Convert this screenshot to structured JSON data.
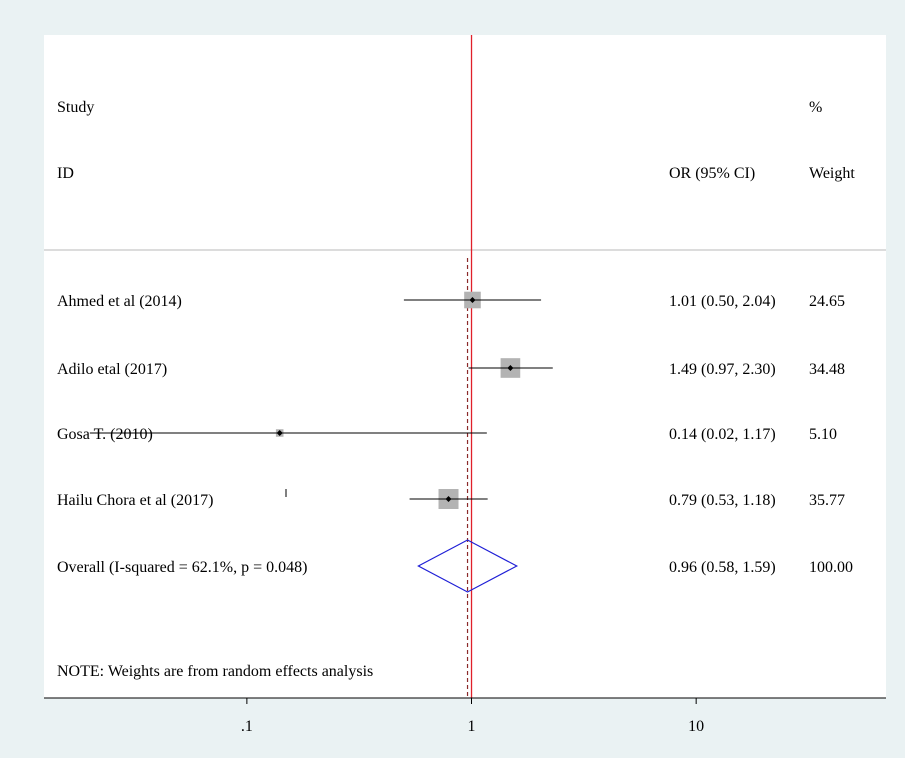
{
  "chart_data": {
    "type": "forest",
    "x_scale": "log",
    "xlim": [
      0.0125,
      70
    ],
    "x_ticks": [
      {
        "value": 0.1,
        "label": ".1"
      },
      {
        "value": 1,
        "label": "1"
      },
      {
        "value": 10,
        "label": "10"
      }
    ],
    "null_line": 1,
    "header": {
      "study_line1": "Study",
      "study_line2": "ID",
      "effect_label": "OR (95% CI)",
      "weight_line1": "%",
      "weight_line2": "Weight"
    },
    "studies": [
      {
        "label": "Ahmed et al (2014)",
        "or": 1.01,
        "lower": 0.5,
        "upper": 2.04,
        "ci_text": "1.01 (0.50, 2.04)",
        "weight": 24.65,
        "weight_text": "24.65"
      },
      {
        "label": "Adilo etal (2017)",
        "or": 1.49,
        "lower": 0.97,
        "upper": 2.3,
        "ci_text": "1.49 (0.97, 2.30)",
        "weight": 34.48,
        "weight_text": "34.48"
      },
      {
        "label": "Gosa T. (2010)",
        "or": 0.14,
        "lower": 0.02,
        "upper": 1.17,
        "ci_text": "0.14 (0.02, 1.17)",
        "weight": 5.1,
        "weight_text": "5.10"
      },
      {
        "label": "Hailu Chora et al (2017)",
        "or": 0.79,
        "lower": 0.53,
        "upper": 1.18,
        "ci_text": "0.79 (0.53, 1.18)",
        "weight": 35.77,
        "weight_text": "35.77"
      }
    ],
    "overall": {
      "label": "Overall  (I-squared = 62.1%, p = 0.048)",
      "or": 0.96,
      "lower": 0.58,
      "upper": 1.59,
      "ci_text": "0.96 (0.58, 1.59)",
      "weight_text": "100.00"
    },
    "note": "NOTE: Weights are from random effects analysis",
    "colors": {
      "background": "#eaf2f3",
      "plot_area": "#ffffff",
      "null_line": "#e0202a",
      "overall_line": "#8b2a2a",
      "diamond": "#1f1fd6",
      "box": "#b3b3b3",
      "point": "#000000",
      "ci_line": "#000000"
    }
  }
}
